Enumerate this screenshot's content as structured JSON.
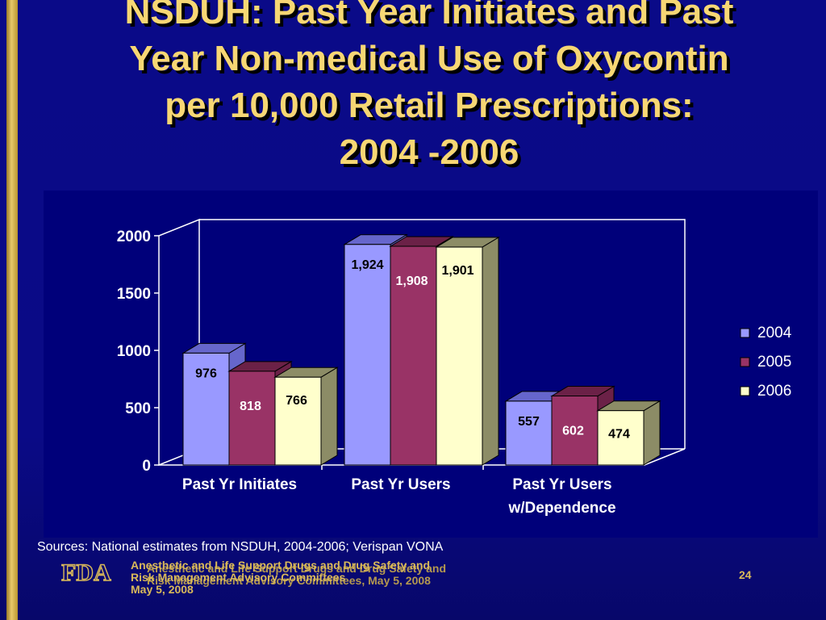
{
  "slide": {
    "title_lines": [
      "NSDUH: Past Year Initiates and Past",
      "Year Non-medical Use of Oxycontin",
      "per 10,000 Retail Prescriptions:",
      "2004 -2006"
    ],
    "sources": "Sources:  National estimates from NSDUH, 2004-2006; Verispan VONA",
    "footer_lines": [
      "Anesthetic and Life Support Drugs and Drug Safety and",
      "Risk Management Advisory Committees, May 5, 2008"
    ],
    "footer_overlay_lines": [
      "Anesthetic and Life Support Drugs and Drug Safety and",
      "Risk Management Advisory Committees",
      "May 5, 2008"
    ],
    "page_number": "24",
    "logo_text": "FDA"
  },
  "colors": {
    "background": "#0a0a86",
    "chart_panel": "#00007a",
    "title": "#f7d774",
    "footer": "#d9b95a",
    "left_bar": "#e8c86a"
  },
  "chart_data": {
    "type": "bar",
    "style": "3d-clustered",
    "title": "",
    "xlabel": "",
    "ylabel": "",
    "categories": [
      "Past Yr Initiates",
      "Past Yr Users",
      "Past Yr Users w/Dependence"
    ],
    "category_label_lines": [
      [
        "Past Yr Initiates"
      ],
      [
        "Past Yr Users"
      ],
      [
        "Past Yr Users",
        "w/Dependence"
      ]
    ],
    "series": [
      {
        "name": "2004",
        "values": [
          976,
          1924,
          557
        ],
        "labels": [
          "976",
          "1,924",
          "557"
        ],
        "color": "#9999ff",
        "side": "#6666cc",
        "label_color": "#000000"
      },
      {
        "name": "2005",
        "values": [
          818,
          1908,
          602
        ],
        "labels": [
          "818",
          "1,908",
          "602"
        ],
        "color": "#993366",
        "side": "#6b2147",
        "label_color": "#ffffff"
      },
      {
        "name": "2006",
        "values": [
          766,
          1901,
          474
        ],
        "labels": [
          "766",
          "1,901",
          "474"
        ],
        "color": "#ffffcc",
        "side": "#8c8c66",
        "label_color": "#000000"
      }
    ],
    "ylim": [
      0,
      2000
    ],
    "yticks": [
      0,
      500,
      1000,
      1500,
      2000
    ],
    "legend": "right",
    "grid": false
  }
}
